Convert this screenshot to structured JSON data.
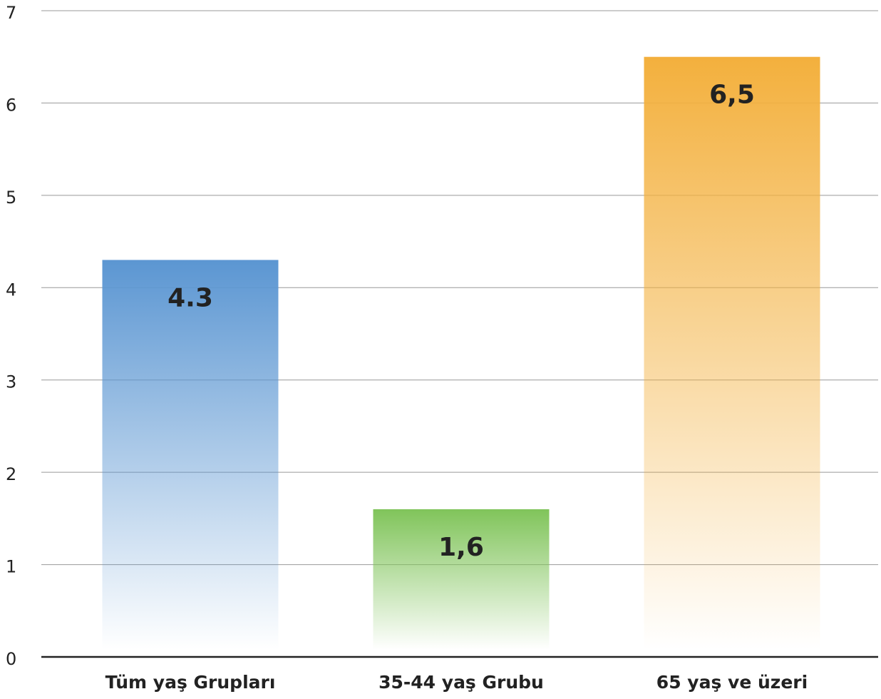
{
  "chart_data": {
    "type": "bar",
    "categories": [
      "Tüm yaş Grupları",
      "35-44 yaş Grubu",
      "65 yaş ve üzeri"
    ],
    "values": [
      4.3,
      1.6,
      6.5
    ],
    "value_labels": [
      "4.3",
      "1,6",
      "6,5"
    ],
    "colors": [
      "#5b96d2",
      "#80c45a",
      "#f3b03d"
    ],
    "ylim": [
      0,
      7
    ],
    "yticks": [
      0,
      1,
      2,
      3,
      4,
      5,
      6,
      7
    ],
    "grid": true
  }
}
